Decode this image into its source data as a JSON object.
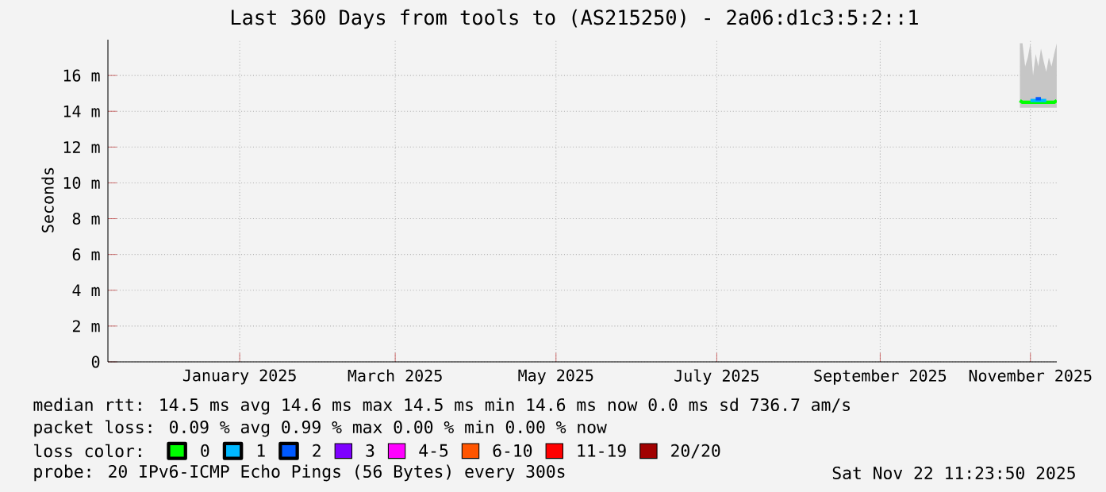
{
  "chart_data": {
    "type": "line",
    "title": "Last 360 Days from tools to (AS215250) - 2a06:d1c3:5:2::1",
    "ylabel": "Seconds",
    "xlim": [
      "2024-11-27",
      "2025-11-22"
    ],
    "xticks": [
      {
        "value": "2025-01-16",
        "label": "January 2025"
      },
      {
        "value": "2025-03-16",
        "label": "March 2025"
      },
      {
        "value": "2025-05-16",
        "label": "May 2025"
      },
      {
        "value": "2025-07-16",
        "label": "July 2025"
      },
      {
        "value": "2025-09-16",
        "label": "September 2025"
      },
      {
        "value": "2025-11-12",
        "label": "November 2025"
      }
    ],
    "ylim": [
      0,
      18
    ],
    "yticks": [
      {
        "value": 0,
        "label": "0"
      },
      {
        "value": 2,
        "label": "2 m"
      },
      {
        "value": 4,
        "label": "4 m"
      },
      {
        "value": 6,
        "label": "6 m"
      },
      {
        "value": 8,
        "label": "8 m"
      },
      {
        "value": 10,
        "label": "10 m"
      },
      {
        "value": 12,
        "label": "12 m"
      },
      {
        "value": 14,
        "label": "14 m"
      },
      {
        "value": 16,
        "label": "16 m"
      }
    ],
    "grid": true,
    "legend": "bottom",
    "legend_title": "loss color:",
    "series": [
      {
        "name": "0",
        "color": "#00ff00",
        "x": [
          "2025-11-08",
          "2025-11-09",
          "2025-11-10",
          "2025-11-11",
          "2025-11-12",
          "2025-11-13",
          "2025-11-14",
          "2025-11-15",
          "2025-11-16",
          "2025-11-17",
          "2025-11-18",
          "2025-11-19",
          "2025-11-20",
          "2025-11-21",
          "2025-11-22"
        ],
        "values": [
          14.6,
          14.5,
          14.5,
          14.5,
          14.5,
          14.5,
          14.5,
          14.5,
          14.5,
          14.5,
          14.5,
          14.5,
          14.5,
          14.5,
          14.6
        ],
        "lower": [
          14.2,
          14.2,
          14.2,
          14.2,
          14.2,
          14.2,
          14.2,
          14.2,
          14.2,
          14.2,
          14.2,
          14.2,
          14.2,
          14.2,
          14.2
        ],
        "upper": [
          17.8,
          17.8,
          16.5,
          17.0,
          17.8,
          16.0,
          17.2,
          16.5,
          17.5,
          16.8,
          16.2,
          17.0,
          16.5,
          17.2,
          17.8
        ]
      },
      {
        "name": "1",
        "color": "#00b8ff",
        "x": [
          "2025-11-12",
          "2025-11-13",
          "2025-11-17",
          "2025-11-18"
        ],
        "values": [
          14.6,
          14.6,
          14.6,
          14.6
        ]
      },
      {
        "name": "2",
        "color": "#0059ff",
        "x": [
          "2025-11-14",
          "2025-11-15",
          "2025-11-16"
        ],
        "values": [
          14.7,
          14.7,
          14.7
        ]
      },
      {
        "name": "3",
        "color": "#7e00ff"
      },
      {
        "name": "4-5",
        "color": "#ff00ff"
      },
      {
        "name": "6-10",
        "color": "#ff5500"
      },
      {
        "name": "11-19",
        "color": "#ff0000"
      },
      {
        "name": "20/20",
        "color": "#a10000"
      }
    ],
    "annotations": [
      "median rtt:  14.5 ms avg  14.6 ms max  14.5 ms min  14.6 ms now  0.0 ms sd  736.7   am/s",
      "packet loss: 0.09 % avg  0.99 % max  0.00 % min  0.00 % now",
      "probe:       20 IPv6-ICMP Echo Pings (56 Bytes) every 300s",
      "Sat Nov 22 11:23:50 2025"
    ]
  }
}
